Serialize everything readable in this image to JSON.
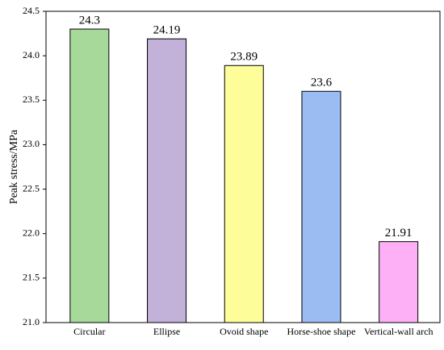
{
  "chart_data": {
    "type": "bar",
    "y_label": "Peak stress/MPa",
    "categories": [
      "Circular",
      "Ellipse",
      "Ovoid shape",
      "Horse-shoe shape",
      "Vertical-wall arch"
    ],
    "values": [
      24.3,
      24.19,
      23.89,
      23.6,
      21.91
    ],
    "colors": [
      "#a6d99a",
      "#c2b1d8",
      "#fdfd9a",
      "#9bbcf2",
      "#fdb0f5"
    ],
    "ylim": [
      21,
      24.5
    ],
    "yticks": [
      {
        "value": 21,
        "label": "21.0"
      },
      21.5,
      {
        "value": 22,
        "label": "22.0"
      },
      22.5,
      {
        "value": 23,
        "label": "23.0"
      },
      23.5,
      {
        "value": 24,
        "label": "24.0"
      },
      24.5
    ]
  }
}
